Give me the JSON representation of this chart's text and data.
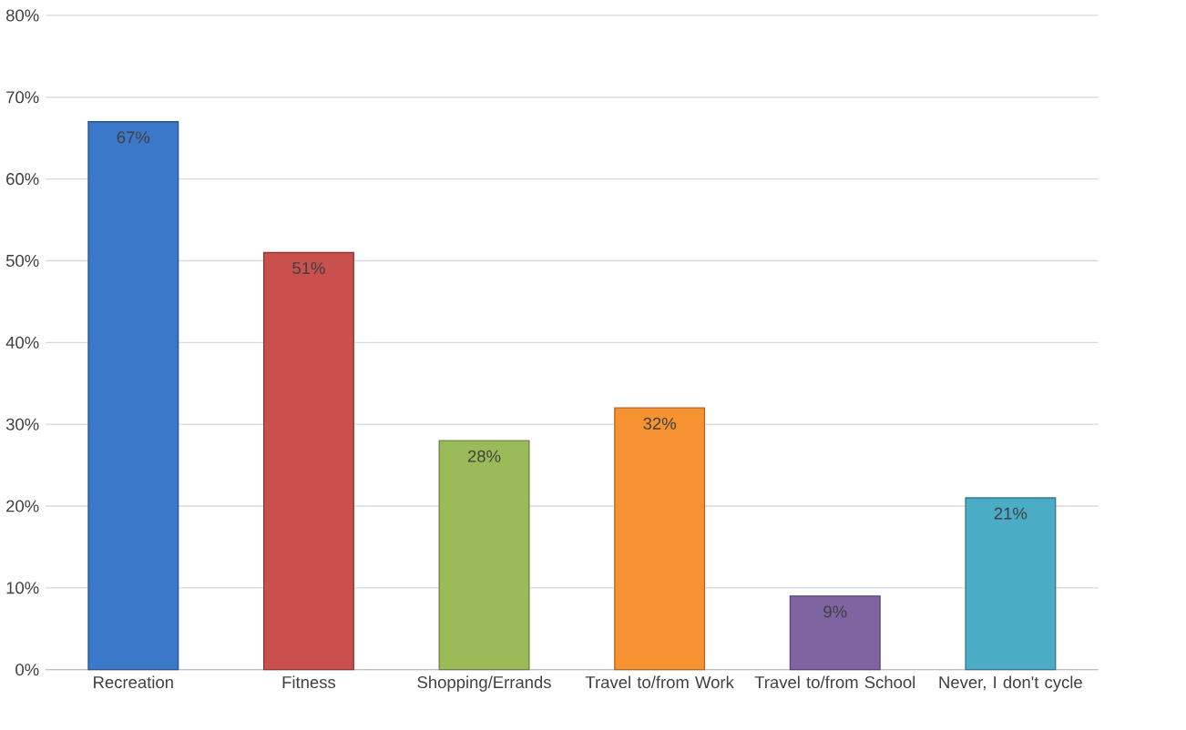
{
  "chart_data": {
    "type": "bar",
    "categories": [
      "Recreation",
      "Fitness",
      "Shopping/Errands",
      "Travel to/from Work",
      "Travel to/from School",
      "Never, I don't cycle"
    ],
    "values": [
      67,
      51,
      28,
      32,
      9,
      21
    ],
    "value_labels": [
      "67%",
      "51%",
      "28%",
      "32%",
      "9%",
      "21%"
    ],
    "colors": [
      "#3b78c9",
      "#c9504c",
      "#9bbb59",
      "#f79232",
      "#8064a2",
      "#4bacc6"
    ],
    "ylim": [
      0,
      80
    ],
    "yticks": [
      {
        "value": 0,
        "label": "0%"
      },
      {
        "value": 10,
        "label": "10%"
      },
      {
        "value": 20,
        "label": "20%"
      },
      {
        "value": 30,
        "label": "30%"
      },
      {
        "value": 40,
        "label": "40%"
      },
      {
        "value": 50,
        "label": "50%"
      },
      {
        "value": 60,
        "label": "60%"
      },
      {
        "value": 70,
        "label": "70%"
      },
      {
        "value": 80,
        "label": "80%"
      }
    ],
    "grid": "y"
  }
}
